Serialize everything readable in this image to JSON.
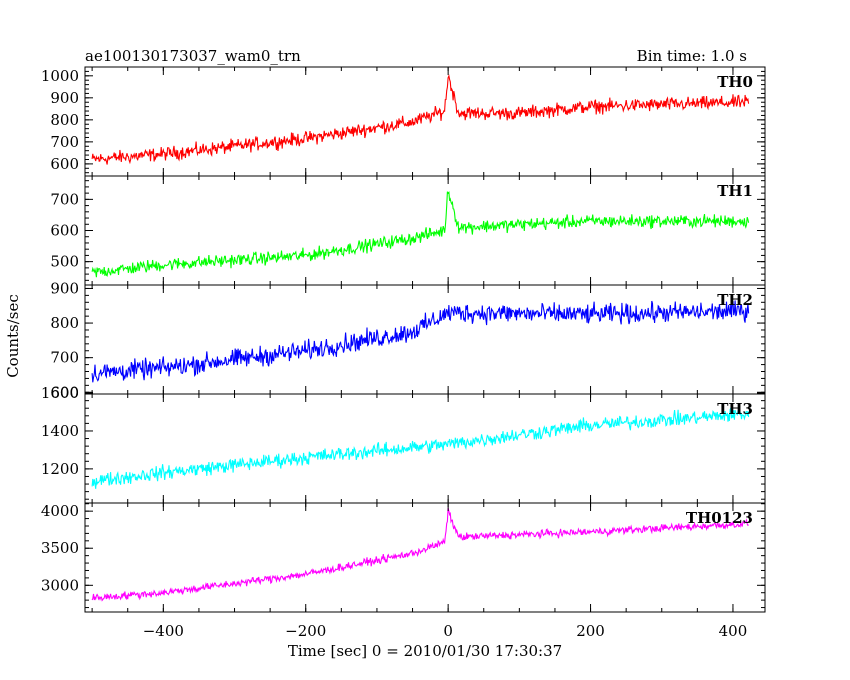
{
  "header": {
    "title": "ae100130173037_wam0_trn",
    "bin_time": "Bin time: 1.0 s"
  },
  "chart_data": {
    "type": "line",
    "title": "ae100130173037_wam0_trn",
    "subtitle": "Bin time: 1.0 s",
    "xlabel": "Time [sec] 0 = 2010/01/30 17:30:37",
    "ylabel": "Counts/sec",
    "xlim": [
      -510,
      445
    ],
    "x_ticks": [
      -400,
      -200,
      0,
      200,
      400
    ],
    "x_tick_labels": [
      "−400",
      "−200",
      "0",
      "200",
      "400"
    ],
    "x_range": [
      -500,
      422
    ],
    "grid": false,
    "series": [
      {
        "name": "TH0",
        "color": "#ff0000",
        "ylim": [
          545,
          1040
        ],
        "y_ticks": [
          600,
          700,
          800,
          900,
          1000
        ],
        "trend_points": [
          [
            -500,
            620
          ],
          [
            -400,
            645
          ],
          [
            -200,
            715
          ],
          [
            -50,
            790
          ],
          [
            -5,
            840
          ],
          [
            0,
            1000
          ],
          [
            15,
            830
          ],
          [
            100,
            830
          ],
          [
            200,
            860
          ],
          [
            420,
            880
          ]
        ],
        "noise_amplitude": 45
      },
      {
        "name": "TH1",
        "color": "#00ff00",
        "ylim": [
          425,
          775
        ],
        "y_ticks": [
          500,
          600,
          700
        ],
        "trend_points": [
          [
            -500,
            465
          ],
          [
            -400,
            490
          ],
          [
            -200,
            520
          ],
          [
            -50,
            575
          ],
          [
            -5,
            600
          ],
          [
            0,
            730
          ],
          [
            15,
            610
          ],
          [
            200,
            630
          ],
          [
            420,
            630
          ]
        ],
        "noise_amplitude": 30
      },
      {
        "name": "TH2",
        "color": "#0000ff",
        "ylim": [
          595,
          910
        ],
        "y_ticks": [
          600,
          700,
          800,
          900
        ],
        "trend_points": [
          [
            -500,
            655
          ],
          [
            -400,
            670
          ],
          [
            -200,
            720
          ],
          [
            -50,
            775
          ],
          [
            0,
            830
          ],
          [
            200,
            825
          ],
          [
            420,
            835
          ]
        ],
        "noise_amplitude": 42
      },
      {
        "name": "TH3",
        "color": "#00ffff",
        "ylim": [
          1020,
          1595
        ],
        "y_ticks": [
          1200,
          1400,
          1600
        ],
        "trend_points": [
          [
            -500,
            1135
          ],
          [
            -400,
            1180
          ],
          [
            -200,
            1260
          ],
          [
            0,
            1330
          ],
          [
            200,
            1430
          ],
          [
            420,
            1490
          ]
        ],
        "noise_amplitude": 55
      },
      {
        "name": "TH0123",
        "color": "#ff00ff",
        "ylim": [
          2640,
          4110
        ],
        "y_ticks": [
          3000,
          3500,
          4000
        ],
        "trend_points": [
          [
            -500,
            2830
          ],
          [
            -400,
            2900
          ],
          [
            -200,
            3150
          ],
          [
            -50,
            3430
          ],
          [
            -5,
            3580
          ],
          [
            0,
            3990
          ],
          [
            15,
            3650
          ],
          [
            200,
            3720
          ],
          [
            420,
            3830
          ]
        ],
        "noise_amplitude": 75
      }
    ]
  }
}
